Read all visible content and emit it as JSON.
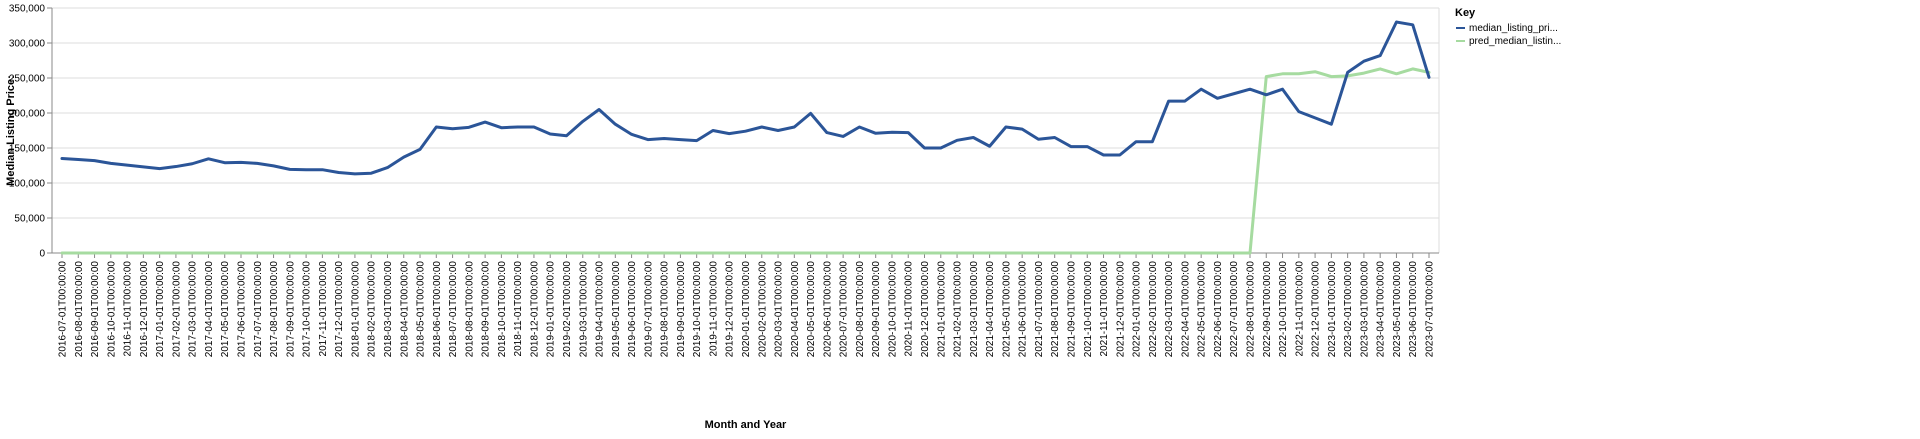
{
  "chart_data": {
    "type": "line",
    "xlabel": "Month and Year",
    "ylabel": "Median Listing Price:",
    "ylim": [
      0,
      350000
    ],
    "y_ticks": [
      "0",
      "50,000",
      "100,000",
      "150,000",
      "200,000",
      "250,000",
      "300,000",
      "350,000"
    ],
    "y_tick_values": [
      0,
      50000,
      100000,
      150000,
      200000,
      250000,
      300000,
      350000
    ],
    "grid": true,
    "legend_title": "Key",
    "legend_position": "top-right",
    "x": [
      "2016-07-01T00:00:00",
      "2016-08-01T00:00:00",
      "2016-09-01T00:00:00",
      "2016-10-01T00:00:00",
      "2016-11-01T00:00:00",
      "2016-12-01T00:00:00",
      "2017-01-01T00:00:00",
      "2017-02-01T00:00:00",
      "2017-03-01T00:00:00",
      "2017-04-01T00:00:00",
      "2017-05-01T00:00:00",
      "2017-06-01T00:00:00",
      "2017-07-01T00:00:00",
      "2017-08-01T00:00:00",
      "2017-09-01T00:00:00",
      "2017-10-01T00:00:00",
      "2017-11-01T00:00:00",
      "2017-12-01T00:00:00",
      "2018-01-01T00:00:00",
      "2018-02-01T00:00:00",
      "2018-03-01T00:00:00",
      "2018-04-01T00:00:00",
      "2018-05-01T00:00:00",
      "2018-06-01T00:00:00",
      "2018-07-01T00:00:00",
      "2018-08-01T00:00:00",
      "2018-09-01T00:00:00",
      "2018-10-01T00:00:00",
      "2018-11-01T00:00:00",
      "2018-12-01T00:00:00",
      "2019-01-01T00:00:00",
      "2019-02-01T00:00:00",
      "2019-03-01T00:00:00",
      "2019-04-01T00:00:00",
      "2019-05-01T00:00:00",
      "2019-06-01T00:00:00",
      "2019-07-01T00:00:00",
      "2019-08-01T00:00:00",
      "2019-09-01T00:00:00",
      "2019-10-01T00:00:00",
      "2019-11-01T00:00:00",
      "2019-12-01T00:00:00",
      "2020-01-01T00:00:00",
      "2020-02-01T00:00:00",
      "2020-03-01T00:00:00",
      "2020-04-01T00:00:00",
      "2020-05-01T00:00:00",
      "2020-06-01T00:00:00",
      "2020-07-01T00:00:00",
      "2020-08-01T00:00:00",
      "2020-09-01T00:00:00",
      "2020-10-01T00:00:00",
      "2020-11-01T00:00:00",
      "2020-12-01T00:00:00",
      "2021-01-01T00:00:00",
      "2021-02-01T00:00:00",
      "2021-03-01T00:00:00",
      "2021-04-01T00:00:00",
      "2021-05-01T00:00:00",
      "2021-06-01T00:00:00",
      "2021-07-01T00:00:00",
      "2021-08-01T00:00:00",
      "2021-09-01T00:00:00",
      "2021-10-01T00:00:00",
      "2021-11-01T00:00:00",
      "2021-12-01T00:00:00",
      "2022-01-01T00:00:00",
      "2022-02-01T00:00:00",
      "2022-03-01T00:00:00",
      "2022-04-01T00:00:00",
      "2022-05-01T00:00:00",
      "2022-06-01T00:00:00",
      "2022-07-01T00:00:00",
      "2022-08-01T00:00:00",
      "2022-09-01T00:00:00",
      "2022-10-01T00:00:00",
      "2022-11-01T00:00:00",
      "2022-12-01T00:00:00",
      "2023-01-01T00:00:00",
      "2023-02-01T00:00:00",
      "2023-03-01T00:00:00",
      "2023-04-01T00:00:00",
      "2023-05-01T00:00:00",
      "2023-06-01T00:00:00",
      "2023-07-01T00:00:00"
    ],
    "series": [
      {
        "name": "median_listing_pri...",
        "color": "#2b5598",
        "values": [
          135000,
          133500,
          132000,
          128000,
          125500,
          123000,
          120500,
          123500,
          127500,
          134500,
          129000,
          129500,
          128000,
          124500,
          119500,
          119000,
          119000,
          115000,
          113000,
          114000,
          122000,
          137000,
          148000,
          180000,
          177500,
          179500,
          187000,
          179000,
          180000,
          180000,
          170000,
          167500,
          188000,
          205000,
          184000,
          169500,
          162000,
          163500,
          162000,
          160500,
          175000,
          170500,
          174000,
          180000,
          175000,
          180000,
          199500,
          172000,
          166500,
          180000,
          171000,
          172500,
          172000,
          150000,
          150000,
          161000,
          165000,
          152500,
          180000,
          177000,
          162500,
          165000,
          152000,
          152000,
          140000,
          140000,
          159000,
          159000,
          217000,
          217000,
          234000,
          221000,
          227500,
          234000,
          226000,
          234000,
          202000,
          193000,
          184000,
          258000,
          274000,
          282000,
          330000,
          326000,
          251000
        ]
      },
      {
        "name": "pred_median_listin...",
        "color": "#a6dba0",
        "values": [
          0,
          0,
          0,
          0,
          0,
          0,
          0,
          0,
          0,
          0,
          0,
          0,
          0,
          0,
          0,
          0,
          0,
          0,
          0,
          0,
          0,
          0,
          0,
          0,
          0,
          0,
          0,
          0,
          0,
          0,
          0,
          0,
          0,
          0,
          0,
          0,
          0,
          0,
          0,
          0,
          0,
          0,
          0,
          0,
          0,
          0,
          0,
          0,
          0,
          0,
          0,
          0,
          0,
          0,
          0,
          0,
          0,
          0,
          0,
          0,
          0,
          0,
          0,
          0,
          0,
          0,
          0,
          0,
          0,
          0,
          0,
          0,
          0,
          0,
          252000,
          256000,
          256000,
          259000,
          252000,
          253000,
          257000,
          263000,
          256000,
          263000,
          258000
        ]
      }
    ]
  }
}
